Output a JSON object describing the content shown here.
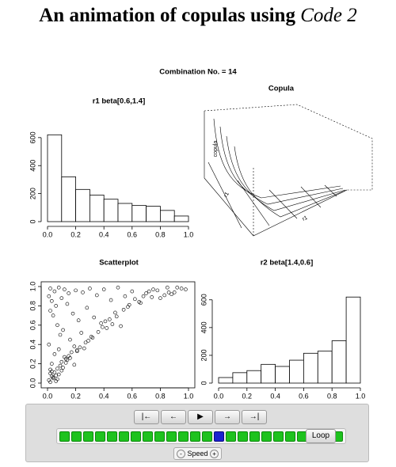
{
  "title": {
    "text": "An animation of copulas using ",
    "emphasis": "Code 2"
  },
  "panel_label": "Combination No. =  14",
  "chart_data": [
    {
      "type": "histogram",
      "title": "r1 beta[0.6,1.4]",
      "bins": [
        0,
        0.1,
        0.2,
        0.3,
        0.4,
        0.5,
        0.6,
        0.7,
        0.8,
        0.9,
        1.0
      ],
      "values": [
        620,
        320,
        230,
        190,
        160,
        130,
        115,
        110,
        80,
        40
      ],
      "xlim": [
        0,
        1
      ],
      "ylim": [
        0,
        650
      ],
      "xticks": [
        {
          "value": 0,
          "label": "0.0"
        },
        0.2,
        0.4,
        0.6,
        0.8,
        {
          "value": 1,
          "label": "1.0"
        }
      ],
      "yticks": [
        0,
        200,
        400,
        600
      ],
      "color": "#ffffff"
    },
    {
      "type": "surface",
      "title": "Copula",
      "x_label": "r1",
      "y_label": "r1",
      "z_label": "copula"
    },
    {
      "type": "scatter",
      "title": "Scatterplot",
      "x": [
        0.02,
        0.05,
        0.01,
        0.08,
        0.12,
        0.03,
        0.15,
        0.06,
        0.2,
        0.04,
        0.1,
        0.25,
        0.07,
        0.02,
        0.3,
        0.14,
        0.09,
        0.35,
        0.18,
        0.01,
        0.4,
        0.22,
        0.05,
        0.45,
        0.11,
        0.28,
        0.5,
        0.03,
        0.16,
        0.55,
        0.08,
        0.33,
        0.6,
        0.13,
        0.02,
        0.65,
        0.24,
        0.07,
        0.7,
        0.19,
        0.04,
        0.75,
        0.38,
        0.1,
        0.8,
        0.27,
        0.06,
        0.85,
        0.42,
        0.15,
        0.9,
        0.03,
        0.48,
        0.21,
        0.95,
        0.09,
        0.58,
        0.31,
        0.01,
        0.68,
        0.12,
        0.44,
        0.04,
        0.78,
        0.17,
        0.52,
        0.06,
        0.88,
        0.23,
        0.36,
        0.02,
        0.62,
        0.14,
        0.46,
        0.08,
        0.72,
        0.29,
        0.05,
        0.98,
        0.19,
        0.54,
        0.11,
        0.83,
        0.26,
        0.03,
        0.66,
        0.39,
        0.07,
        0.92,
        0.16,
        0.49,
        0.1,
        0.74,
        0.32,
        0.02,
        0.57,
        0.21,
        0.86,
        0.13,
        0.41
      ],
      "y": [
        0.98,
        0.95,
        0.9,
        0.99,
        0.97,
        0.85,
        0.93,
        0.8,
        0.96,
        0.7,
        0.88,
        0.94,
        0.6,
        0.75,
        0.98,
        0.82,
        0.5,
        0.91,
        0.72,
        0.4,
        0.97,
        0.65,
        0.3,
        0.86,
        0.55,
        0.78,
        0.99,
        0.2,
        0.45,
        0.9,
        0.35,
        0.68,
        0.95,
        0.25,
        0.1,
        0.84,
        0.52,
        0.15,
        0.93,
        0.38,
        0.05,
        0.97,
        0.62,
        0.22,
        0.88,
        0.42,
        0.08,
        0.99,
        0.57,
        0.28,
        0.94,
        0.12,
        0.73,
        0.33,
        0.98,
        0.18,
        0.81,
        0.48,
        0.03,
        0.9,
        0.27,
        0.66,
        0.06,
        0.96,
        0.32,
        0.59,
        0.02,
        0.92,
        0.37,
        0.53,
        0.14,
        0.87,
        0.24,
        0.61,
        0.09,
        0.95,
        0.44,
        0.11,
        0.97,
        0.19,
        0.76,
        0.16,
        0.91,
        0.36,
        0.07,
        0.83,
        0.58,
        0.04,
        0.99,
        0.26,
        0.69,
        0.13,
        0.89,
        0.47,
        0.01,
        0.79,
        0.34,
        0.94,
        0.21,
        0.64
      ],
      "xlim": [
        0,
        1
      ],
      "ylim": [
        0,
        1
      ],
      "xticks": [
        {
          "value": 0,
          "label": "0.0"
        },
        0.2,
        0.4,
        0.6,
        0.8,
        {
          "value": 1,
          "label": "1.0"
        }
      ],
      "yticks": [
        {
          "value": 0,
          "label": "0.0"
        },
        0.2,
        0.4,
        0.6,
        0.8,
        {
          "value": 1,
          "label": "1.0"
        }
      ],
      "color": "#000000"
    },
    {
      "type": "histogram",
      "title": "r2 beta[1.4,0.6]",
      "bins": [
        0,
        0.1,
        0.2,
        0.3,
        0.4,
        0.5,
        0.6,
        0.7,
        0.8,
        0.9,
        1.0
      ],
      "values": [
        40,
        75,
        90,
        135,
        120,
        165,
        215,
        230,
        305,
        620
      ],
      "xlim": [
        0,
        1
      ],
      "ylim": [
        0,
        650
      ],
      "xticks": [
        {
          "value": 0,
          "label": "0.0"
        },
        0.2,
        0.4,
        0.6,
        0.8,
        {
          "value": 1,
          "label": "1.0"
        }
      ],
      "yticks": [
        0,
        200,
        400,
        600
      ],
      "color": "#ffffff"
    }
  ],
  "controls": {
    "buttons": [
      "|←",
      "←",
      "▶",
      "→",
      "→|"
    ],
    "frames": 24,
    "current": 14,
    "loop": "Loop",
    "speed": "Speed",
    "minus": "-",
    "plus": "+"
  }
}
